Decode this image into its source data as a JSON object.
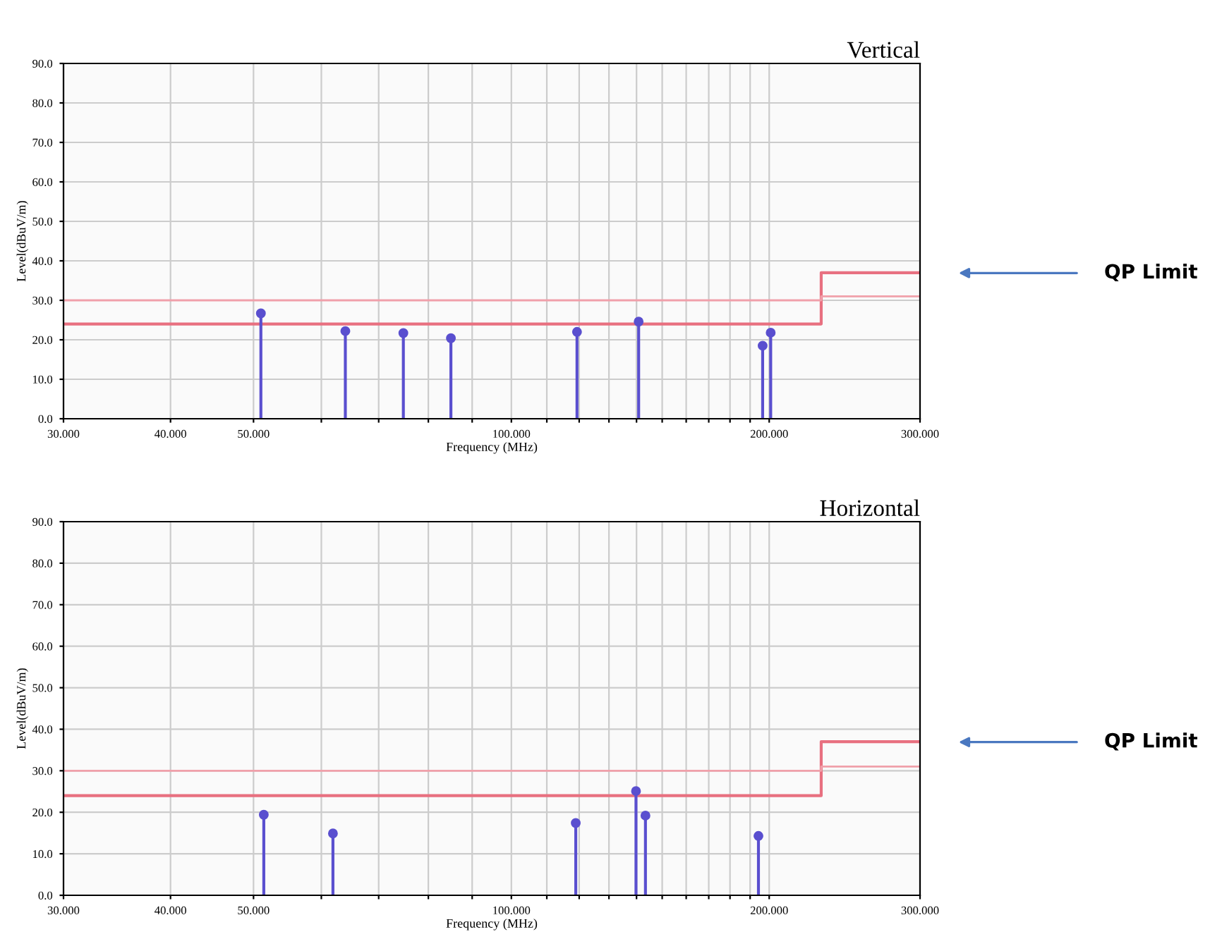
{
  "chart_data": [
    {
      "type": "lollipop",
      "title": "Vertical",
      "xlabel": "Frequency (MHz)",
      "ylabel": "Level(dBuV/m)",
      "log": "x",
      "grid": true,
      "xlim": [
        30,
        300
      ],
      "ylim": [
        0,
        90
      ],
      "xticks": [
        {
          "value": 30,
          "label": "30.000"
        },
        {
          "value": 40,
          "label": "40.000"
        },
        {
          "value": 50,
          "label": "50.000"
        },
        {
          "value": 60,
          "label": null
        },
        {
          "value": 70,
          "label": null
        },
        {
          "value": 80,
          "label": null
        },
        {
          "value": 90,
          "label": null
        },
        {
          "value": 100,
          "label": "100.000"
        },
        {
          "value": 110,
          "label": null
        },
        {
          "value": 120,
          "label": null
        },
        {
          "value": 130,
          "label": null
        },
        {
          "value": 140,
          "label": null
        },
        {
          "value": 150,
          "label": null
        },
        {
          "value": 160,
          "label": null
        },
        {
          "value": 170,
          "label": null
        },
        {
          "value": 180,
          "label": null
        },
        {
          "value": 190,
          "label": null
        },
        {
          "value": 200,
          "label": "200.000"
        },
        {
          "value": 300,
          "label": "300.000"
        }
      ],
      "yticks": [
        {
          "value": 0,
          "label": "0.0"
        },
        {
          "value": 10,
          "label": "10.0"
        },
        {
          "value": 20,
          "label": "20.0"
        },
        {
          "value": 30,
          "label": "30.0"
        },
        {
          "value": 40,
          "label": "40.0"
        },
        {
          "value": 50,
          "label": "50.0"
        },
        {
          "value": 60,
          "label": "60.0"
        },
        {
          "value": 70,
          "label": "70.0"
        },
        {
          "value": 80,
          "label": "80.0"
        },
        {
          "value": 90,
          "label": "90.0"
        }
      ],
      "series": [
        {
          "type": "step",
          "color": "#e87080",
          "x": [
            30,
            230,
            300
          ],
          "values": [
            24,
            37,
            37
          ]
        },
        {
          "type": "step",
          "color": "#f0a0aa",
          "x": [
            30,
            230,
            300
          ],
          "values": [
            30,
            31,
            31
          ]
        },
        {
          "marker": "circle",
          "color": "#5a4fcf",
          "x": [
            51.0,
            64.0,
            74.8,
            85.0,
            119.3,
            140.8,
            196.5,
            200.8
          ],
          "values": [
            26.7,
            22.2,
            21.7,
            20.4,
            22.0,
            24.6,
            18.5,
            21.8
          ]
        }
      ],
      "annotations": [
        "QP Limit"
      ]
    },
    {
      "type": "lollipop",
      "title": "Horizontal",
      "xlabel": "Frequency (MHz)",
      "ylabel": "Level(dBuV/m)",
      "log": "x",
      "grid": true,
      "xlim": [
        30,
        300
      ],
      "ylim": [
        0,
        90
      ],
      "xticks": [
        {
          "value": 30,
          "label": "30.000"
        },
        {
          "value": 40,
          "label": "40.000"
        },
        {
          "value": 50,
          "label": "50.000"
        },
        {
          "value": 60,
          "label": null
        },
        {
          "value": 70,
          "label": null
        },
        {
          "value": 80,
          "label": null
        },
        {
          "value": 90,
          "label": null
        },
        {
          "value": 100,
          "label": "100.000"
        },
        {
          "value": 110,
          "label": null
        },
        {
          "value": 120,
          "label": null
        },
        {
          "value": 130,
          "label": null
        },
        {
          "value": 140,
          "label": null
        },
        {
          "value": 150,
          "label": null
        },
        {
          "value": 160,
          "label": null
        },
        {
          "value": 170,
          "label": null
        },
        {
          "value": 180,
          "label": null
        },
        {
          "value": 190,
          "label": null
        },
        {
          "value": 200,
          "label": "200.000"
        },
        {
          "value": 300,
          "label": "300.000"
        }
      ],
      "yticks": [
        {
          "value": 0,
          "label": "0.0"
        },
        {
          "value": 10,
          "label": "10.0"
        },
        {
          "value": 20,
          "label": "20.0"
        },
        {
          "value": 30,
          "label": "30.0"
        },
        {
          "value": 40,
          "label": "40.0"
        },
        {
          "value": 50,
          "label": "50.0"
        },
        {
          "value": 60,
          "label": "60.0"
        },
        {
          "value": 70,
          "label": "70.0"
        },
        {
          "value": 80,
          "label": "80.0"
        },
        {
          "value": 90,
          "label": "90.0"
        }
      ],
      "series": [
        {
          "type": "step",
          "color": "#e87080",
          "x": [
            30,
            230,
            300
          ],
          "values": [
            24,
            37,
            37
          ]
        },
        {
          "type": "step",
          "color": "#f0a0aa",
          "x": [
            30,
            230,
            300
          ],
          "values": [
            30,
            31,
            31
          ]
        },
        {
          "marker": "circle",
          "color": "#5a4fcf",
          "x": [
            51.4,
            61.9,
            118.9,
            139.8,
            143.4,
            194.3
          ],
          "values": [
            19.4,
            14.9,
            17.4,
            25.1,
            19.2,
            14.3
          ]
        }
      ],
      "annotations": [
        "QP Limit"
      ]
    }
  ]
}
